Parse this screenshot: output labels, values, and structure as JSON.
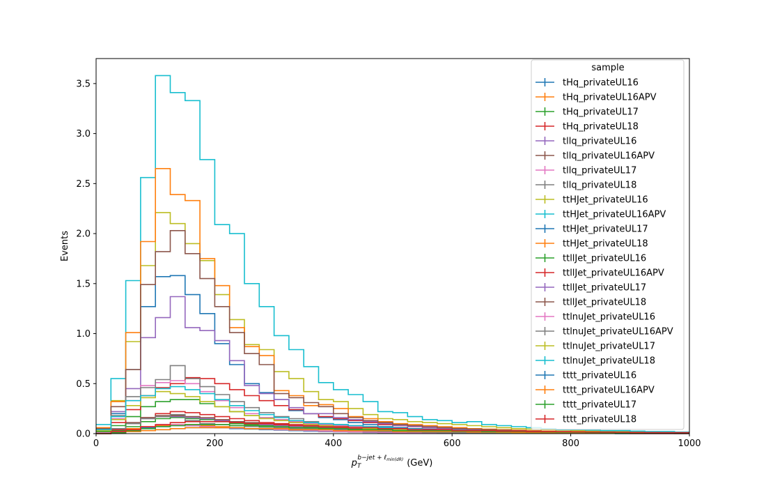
{
  "chart_data": {
    "type": "line",
    "style": "step-histogram",
    "xlabel_symbol": "p",
    "xlabel_sub": "T",
    "xlabel_sup": "b−jet + ℓ",
    "xlabel_sup_sub": "min(dR)",
    "xlabel_unit": "(GeV)",
    "ylabel": "Events",
    "xlim": [
      0,
      1000
    ],
    "ylim": [
      0,
      3.75
    ],
    "xticks": [
      0,
      200,
      400,
      600,
      800,
      1000
    ],
    "xtick_labels": [
      "0",
      "200",
      "400",
      "600",
      "800",
      "1000"
    ],
    "yticks": [
      0.0,
      0.5,
      1.0,
      1.5,
      2.0,
      2.5,
      3.0,
      3.5
    ],
    "ytick_labels": [
      "0.0",
      "0.5",
      "1.0",
      "1.5",
      "2.0",
      "2.5",
      "3.0",
      "3.5"
    ],
    "grid": false,
    "legend_title": "sample",
    "legend_position": "top-right",
    "bin_edges": [
      0,
      25,
      50,
      75,
      100,
      125,
      150,
      175,
      200,
      225,
      250,
      275,
      300,
      325,
      350,
      375,
      400,
      425,
      450,
      475,
      500,
      525,
      550,
      575,
      600,
      625,
      650,
      675,
      700,
      725,
      750,
      775,
      800,
      825,
      850,
      875,
      900,
      925,
      950,
      975,
      1000
    ],
    "series": [
      {
        "name": "tHq_privateUL16",
        "color": "#1f77b4",
        "values": [
          0.01,
          0.02,
          0.04,
          0.06,
          0.07,
          0.08,
          0.08,
          0.07,
          0.06,
          0.05,
          0.045,
          0.04,
          0.035,
          0.03,
          0.025,
          0.02,
          0.018,
          0.015,
          0.012,
          0.01,
          0.009,
          0.008,
          0.007,
          0.006,
          0.005,
          0.005,
          0.004,
          0.004,
          0.003,
          0.003,
          0.003,
          0.002,
          0.002,
          0.002,
          0.002,
          0.001,
          0.001,
          0.001,
          0.001,
          0.001
        ]
      },
      {
        "name": "tHq_privateUL16APV",
        "color": "#ff7f0e",
        "values": [
          0.01,
          0.02,
          0.05,
          0.07,
          0.08,
          0.09,
          0.09,
          0.08,
          0.07,
          0.06,
          0.05,
          0.045,
          0.04,
          0.035,
          0.03,
          0.025,
          0.02,
          0.018,
          0.015,
          0.012,
          0.01,
          0.009,
          0.008,
          0.007,
          0.006,
          0.005,
          0.005,
          0.004,
          0.004,
          0.003,
          0.003,
          0.003,
          0.002,
          0.002,
          0.002,
          0.002,
          0.001,
          0.001,
          0.001,
          0.001
        ]
      },
      {
        "name": "tHq_privateUL17",
        "color": "#2ca02c",
        "values": [
          0.01,
          0.03,
          0.07,
          0.12,
          0.15,
          0.16,
          0.15,
          0.14,
          0.12,
          0.1,
          0.09,
          0.08,
          0.07,
          0.06,
          0.05,
          0.045,
          0.04,
          0.035,
          0.03,
          0.025,
          0.02,
          0.018,
          0.015,
          0.012,
          0.01,
          0.009,
          0.008,
          0.007,
          0.006,
          0.005,
          0.005,
          0.004,
          0.004,
          0.003,
          0.003,
          0.003,
          0.002,
          0.002,
          0.002,
          0.002
        ]
      },
      {
        "name": "tHq_privateUL18",
        "color": "#d62728",
        "values": [
          0.01,
          0.04,
          0.1,
          0.16,
          0.2,
          0.22,
          0.21,
          0.19,
          0.17,
          0.15,
          0.13,
          0.11,
          0.1,
          0.09,
          0.08,
          0.07,
          0.06,
          0.05,
          0.045,
          0.04,
          0.035,
          0.03,
          0.025,
          0.02,
          0.018,
          0.015,
          0.012,
          0.01,
          0.009,
          0.008,
          0.007,
          0.006,
          0.005,
          0.005,
          0.004,
          0.004,
          0.003,
          0.003,
          0.003,
          0.002
        ]
      },
      {
        "name": "tllq_privateUL16",
        "color": "#9467bd",
        "values": [
          0.02,
          0.05,
          0.1,
          0.15,
          0.17,
          0.17,
          0.16,
          0.15,
          0.13,
          0.12,
          0.1,
          0.09,
          0.08,
          0.07,
          0.06,
          0.05,
          0.045,
          0.04,
          0.035,
          0.03,
          0.025,
          0.02,
          0.018,
          0.015,
          0.012,
          0.01,
          0.01,
          0.009,
          0.008,
          0.007,
          0.006,
          0.005,
          0.005,
          0.004,
          0.004,
          0.003,
          0.003,
          0.003,
          0.002,
          0.002
        ]
      },
      {
        "name": "tllq_privateUL16APV",
        "color": "#8c564b",
        "values": [
          0.02,
          0.05,
          0.11,
          0.16,
          0.18,
          0.18,
          0.17,
          0.16,
          0.14,
          0.12,
          0.11,
          0.1,
          0.09,
          0.08,
          0.07,
          0.06,
          0.05,
          0.045,
          0.04,
          0.035,
          0.03,
          0.025,
          0.02,
          0.018,
          0.015,
          0.012,
          0.011,
          0.01,
          0.009,
          0.008,
          0.007,
          0.006,
          0.005,
          0.005,
          0.004,
          0.004,
          0.003,
          0.003,
          0.003,
          0.002
        ]
      },
      {
        "name": "tllq_privateUL17",
        "color": "#e377c2",
        "values": [
          0.01,
          0.02,
          0.04,
          0.07,
          0.09,
          0.09,
          0.08,
          0.07,
          0.06,
          0.055,
          0.05,
          0.045,
          0.04,
          0.035,
          0.03,
          0.025,
          0.02,
          0.018,
          0.015,
          0.012,
          0.01,
          0.009,
          0.008,
          0.007,
          0.006,
          0.005,
          0.005,
          0.004,
          0.004,
          0.003,
          0.003,
          0.003,
          0.002,
          0.002,
          0.002,
          0.002,
          0.001,
          0.001,
          0.001,
          0.001
        ]
      },
      {
        "name": "tllq_privateUL18",
        "color": "#7f7f7f",
        "values": [
          0.02,
          0.05,
          0.1,
          0.15,
          0.17,
          0.19,
          0.13,
          0.1,
          0.09,
          0.08,
          0.07,
          0.065,
          0.06,
          0.05,
          0.045,
          0.04,
          0.035,
          0.03,
          0.025,
          0.02,
          0.018,
          0.015,
          0.012,
          0.01,
          0.009,
          0.008,
          0.007,
          0.006,
          0.005,
          0.005,
          0.004,
          0.004,
          0.003,
          0.003,
          0.003,
          0.002,
          0.002,
          0.002,
          0.002,
          0.001
        ]
      },
      {
        "name": "ttHJet_privateUL16",
        "color": "#bcbd22",
        "values": [
          0.05,
          0.33,
          0.92,
          1.68,
          2.21,
          2.1,
          1.9,
          1.73,
          1.39,
          1.14,
          0.89,
          0.84,
          0.62,
          0.55,
          0.42,
          0.34,
          0.32,
          0.25,
          0.19,
          0.15,
          0.14,
          0.12,
          0.11,
          0.1,
          0.09,
          0.08,
          0.07,
          0.06,
          0.05,
          0.045,
          0.04,
          0.035,
          0.03,
          0.025,
          0.02,
          0.02,
          0.015,
          0.015,
          0.012,
          0.01
        ]
      },
      {
        "name": "ttHJet_privateUL16APV",
        "color": "#17becf",
        "values": [
          0.09,
          0.55,
          1.53,
          2.56,
          3.58,
          3.41,
          3.33,
          2.74,
          2.09,
          2.0,
          1.5,
          1.27,
          0.98,
          0.84,
          0.67,
          0.51,
          0.44,
          0.39,
          0.32,
          0.22,
          0.21,
          0.17,
          0.14,
          0.13,
          0.11,
          0.12,
          0.09,
          0.08,
          0.07,
          0.06,
          0.05,
          0.04,
          0.04,
          0.035,
          0.03,
          0.03,
          0.025,
          0.02,
          0.02,
          0.015
        ]
      },
      {
        "name": "ttHJet_privateUL17",
        "color": "#1f77b4",
        "values": [
          0.04,
          0.2,
          0.64,
          1.27,
          1.57,
          1.58,
          1.39,
          1.2,
          0.9,
          0.69,
          0.5,
          0.41,
          0.34,
          0.23,
          0.2,
          0.16,
          0.14,
          0.11,
          0.09,
          0.07,
          0.06,
          0.05,
          0.045,
          0.04,
          0.035,
          0.03,
          0.025,
          0.02,
          0.018,
          0.015,
          0.012,
          0.01,
          0.009,
          0.008,
          0.007,
          0.006,
          0.005,
          0.005,
          0.004,
          0.004
        ]
      },
      {
        "name": "ttHJet_privateUL18",
        "color": "#ff7f0e",
        "values": [
          0.06,
          0.32,
          1.01,
          1.92,
          2.65,
          2.39,
          2.33,
          1.75,
          1.48,
          1.06,
          0.87,
          0.78,
          0.43,
          0.38,
          0.28,
          0.29,
          0.25,
          0.17,
          0.15,
          0.12,
          0.1,
          0.09,
          0.08,
          0.07,
          0.06,
          0.05,
          0.045,
          0.04,
          0.035,
          0.03,
          0.025,
          0.02,
          0.018,
          0.015,
          0.012,
          0.01,
          0.009,
          0.008,
          0.007,
          0.006
        ]
      },
      {
        "name": "ttllJet_privateUL16",
        "color": "#2ca02c",
        "values": [
          0.02,
          0.08,
          0.17,
          0.27,
          0.32,
          0.34,
          0.34,
          0.3,
          0.27,
          0.22,
          0.18,
          0.16,
          0.14,
          0.12,
          0.1,
          0.09,
          0.08,
          0.07,
          0.06,
          0.05,
          0.045,
          0.04,
          0.035,
          0.03,
          0.025,
          0.02,
          0.018,
          0.015,
          0.012,
          0.01,
          0.009,
          0.008,
          0.007,
          0.006,
          0.005,
          0.005,
          0.004,
          0.004,
          0.003,
          0.003
        ]
      },
      {
        "name": "ttllJet_privateUL16APV",
        "color": "#d62728",
        "values": [
          0.03,
          0.11,
          0.24,
          0.38,
          0.46,
          0.5,
          0.56,
          0.55,
          0.5,
          0.44,
          0.38,
          0.33,
          0.28,
          0.24,
          0.2,
          0.17,
          0.15,
          0.13,
          0.11,
          0.09,
          0.08,
          0.07,
          0.06,
          0.05,
          0.045,
          0.04,
          0.035,
          0.03,
          0.025,
          0.02,
          0.018,
          0.015,
          0.012,
          0.01,
          0.009,
          0.008,
          0.007,
          0.006,
          0.005,
          0.005
        ]
      },
      {
        "name": "ttllJet_privateUL17",
        "color": "#9467bd",
        "values": [
          0.04,
          0.22,
          0.45,
          0.96,
          1.16,
          1.37,
          1.06,
          1.03,
          0.93,
          0.73,
          0.48,
          0.4,
          0.34,
          0.26,
          0.2,
          0.2,
          0.16,
          0.14,
          0.12,
          0.1,
          0.08,
          0.07,
          0.06,
          0.05,
          0.045,
          0.04,
          0.035,
          0.03,
          0.025,
          0.02,
          0.018,
          0.015,
          0.012,
          0.01,
          0.009,
          0.008,
          0.007,
          0.006,
          0.005,
          0.005
        ]
      },
      {
        "name": "ttllJet_privateUL18",
        "color": "#8c564b",
        "values": [
          0.05,
          0.27,
          0.64,
          1.49,
          1.82,
          2.03,
          1.8,
          1.55,
          1.27,
          1.01,
          0.8,
          0.69,
          0.4,
          0.36,
          0.31,
          0.27,
          0.2,
          0.16,
          0.13,
          0.11,
          0.09,
          0.08,
          0.07,
          0.06,
          0.05,
          0.045,
          0.04,
          0.035,
          0.03,
          0.025,
          0.02,
          0.018,
          0.015,
          0.012,
          0.01,
          0.009,
          0.008,
          0.007,
          0.006,
          0.005
        ]
      },
      {
        "name": "ttlnuJet_privateUL16",
        "color": "#e377c2",
        "values": [
          0.03,
          0.15,
          0.33,
          0.48,
          0.51,
          0.53,
          0.5,
          0.42,
          0.33,
          0.26,
          0.2,
          0.16,
          0.14,
          0.12,
          0.1,
          0.09,
          0.08,
          0.07,
          0.06,
          0.05,
          0.045,
          0.04,
          0.035,
          0.03,
          0.025,
          0.02,
          0.018,
          0.015,
          0.012,
          0.01,
          0.009,
          0.008,
          0.007,
          0.006,
          0.005,
          0.005,
          0.004,
          0.004,
          0.003,
          0.003
        ]
      },
      {
        "name": "ttlnuJet_privateUL16APV",
        "color": "#7f7f7f",
        "values": [
          0.04,
          0.18,
          0.37,
          0.46,
          0.54,
          0.68,
          0.55,
          0.47,
          0.39,
          0.32,
          0.26,
          0.21,
          0.17,
          0.15,
          0.12,
          0.1,
          0.09,
          0.08,
          0.07,
          0.06,
          0.05,
          0.045,
          0.04,
          0.035,
          0.03,
          0.025,
          0.02,
          0.018,
          0.015,
          0.012,
          0.01,
          0.009,
          0.008,
          0.007,
          0.006,
          0.005,
          0.005,
          0.004,
          0.004,
          0.003
        ]
      },
      {
        "name": "ttlnuJet_privateUL17",
        "color": "#bcbd22",
        "values": [
          0.03,
          0.14,
          0.28,
          0.36,
          0.42,
          0.4,
          0.37,
          0.32,
          0.27,
          0.22,
          0.18,
          0.15,
          0.13,
          0.11,
          0.09,
          0.08,
          0.07,
          0.06,
          0.05,
          0.045,
          0.04,
          0.035,
          0.03,
          0.025,
          0.02,
          0.018,
          0.015,
          0.012,
          0.01,
          0.009,
          0.008,
          0.007,
          0.006,
          0.005,
          0.005,
          0.004,
          0.004,
          0.003,
          0.003,
          0.002
        ]
      },
      {
        "name": "ttlnuJet_privateUL18",
        "color": "#17becf",
        "values": [
          0.04,
          0.17,
          0.33,
          0.38,
          0.45,
          0.47,
          0.44,
          0.4,
          0.34,
          0.28,
          0.23,
          0.19,
          0.16,
          0.13,
          0.11,
          0.1,
          0.09,
          0.08,
          0.07,
          0.06,
          0.05,
          0.045,
          0.04,
          0.035,
          0.03,
          0.025,
          0.02,
          0.018,
          0.015,
          0.012,
          0.01,
          0.009,
          0.008,
          0.007,
          0.006,
          0.005,
          0.005,
          0.004,
          0.004,
          0.003
        ]
      },
      {
        "name": "tttt_privateUL16",
        "color": "#1f77b4",
        "values": [
          0.0,
          0.01,
          0.02,
          0.03,
          0.04,
          0.05,
          0.06,
          0.06,
          0.06,
          0.06,
          0.05,
          0.05,
          0.05,
          0.04,
          0.04,
          0.04,
          0.03,
          0.03,
          0.03,
          0.03,
          0.02,
          0.02,
          0.02,
          0.02,
          0.02,
          0.015,
          0.015,
          0.015,
          0.012,
          0.012,
          0.01,
          0.01,
          0.01,
          0.008,
          0.008,
          0.007,
          0.006,
          0.006,
          0.005,
          0.005
        ]
      },
      {
        "name": "tttt_privateUL16APV",
        "color": "#ff7f0e",
        "values": [
          0.0,
          0.01,
          0.02,
          0.03,
          0.04,
          0.05,
          0.06,
          0.06,
          0.06,
          0.06,
          0.05,
          0.05,
          0.05,
          0.04,
          0.04,
          0.04,
          0.03,
          0.03,
          0.03,
          0.03,
          0.02,
          0.02,
          0.02,
          0.02,
          0.02,
          0.015,
          0.015,
          0.015,
          0.012,
          0.012,
          0.01,
          0.01,
          0.01,
          0.008,
          0.008,
          0.007,
          0.006,
          0.006,
          0.005,
          0.005
        ]
      },
      {
        "name": "tttt_privateUL17",
        "color": "#2ca02c",
        "values": [
          0.0,
          0.01,
          0.03,
          0.05,
          0.07,
          0.08,
          0.09,
          0.09,
          0.09,
          0.08,
          0.08,
          0.07,
          0.07,
          0.06,
          0.06,
          0.05,
          0.05,
          0.04,
          0.04,
          0.04,
          0.03,
          0.03,
          0.03,
          0.03,
          0.025,
          0.025,
          0.02,
          0.02,
          0.02,
          0.018,
          0.016,
          0.015,
          0.014,
          0.012,
          0.011,
          0.01,
          0.01,
          0.009,
          0.008,
          0.008
        ]
      },
      {
        "name": "tttt_privateUL18",
        "color": "#d62728",
        "values": [
          0.0,
          0.02,
          0.04,
          0.07,
          0.09,
          0.11,
          0.12,
          0.12,
          0.12,
          0.11,
          0.1,
          0.1,
          0.09,
          0.08,
          0.08,
          0.07,
          0.07,
          0.06,
          0.06,
          0.05,
          0.05,
          0.04,
          0.04,
          0.04,
          0.03,
          0.03,
          0.03,
          0.025,
          0.025,
          0.02,
          0.02,
          0.02,
          0.018,
          0.016,
          0.015,
          0.014,
          0.012,
          0.011,
          0.01,
          0.01
        ]
      }
    ]
  }
}
